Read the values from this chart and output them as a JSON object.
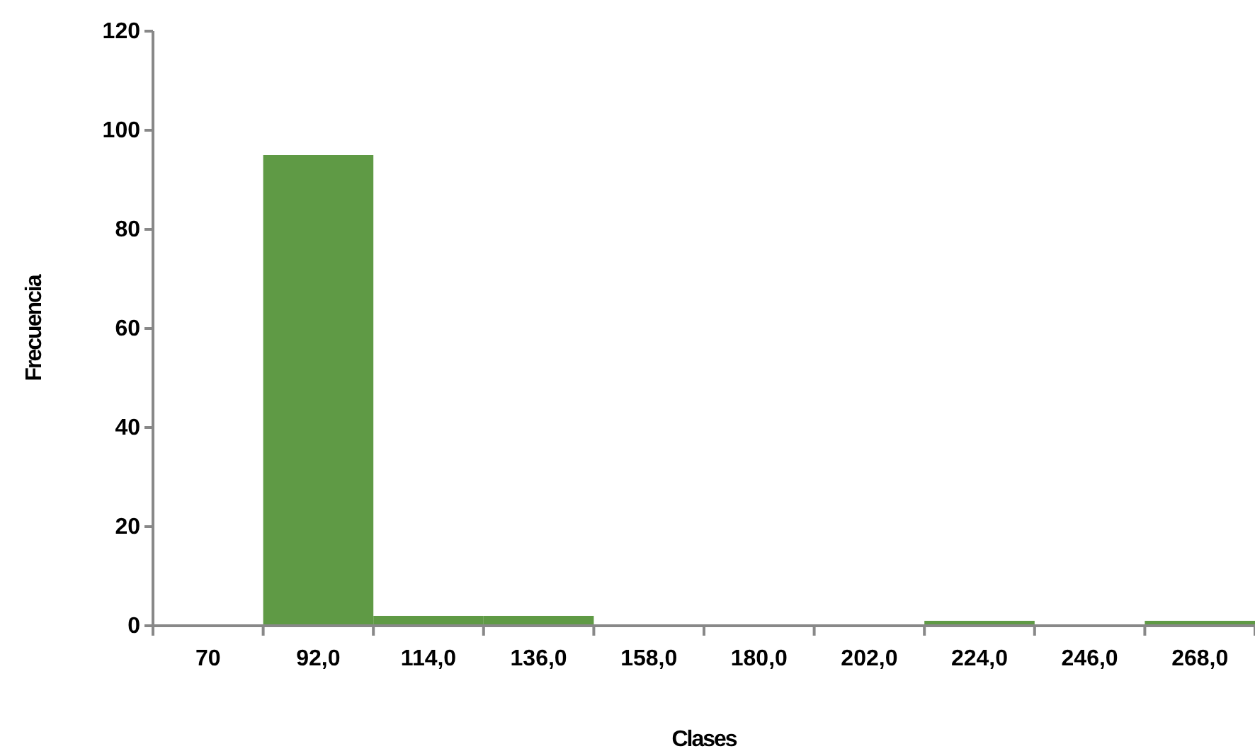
{
  "chart_data": {
    "type": "bar",
    "xlabel": "Clases",
    "ylabel": "Frecuencia",
    "categories": [
      "70",
      "92,0",
      "114,0",
      "136,0",
      "158,0",
      "180,0",
      "202,0",
      "224,0",
      "246,0",
      "268,0"
    ],
    "series": [
      {
        "color": "#5f9a45",
        "values": [
          0,
          95,
          2,
          2,
          0,
          0,
          0,
          1,
          0,
          1
        ]
      }
    ],
    "ylim": [
      0,
      120
    ],
    "yticks": [
      0,
      20,
      40,
      60,
      80,
      100,
      120
    ],
    "grid": false
  }
}
